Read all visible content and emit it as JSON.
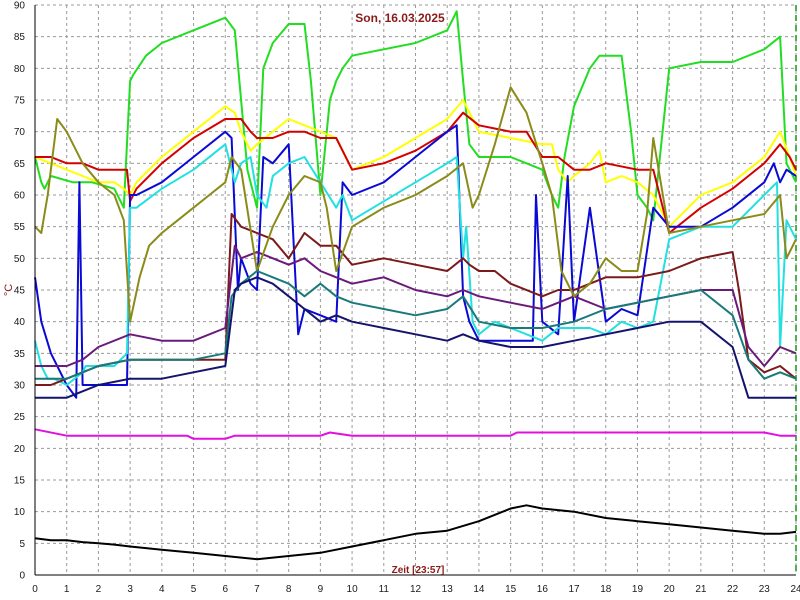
{
  "chart_data": {
    "type": "line",
    "title": "Son, 16.03.2025",
    "xlabel": "Zeit [23:57]",
    "ylabel": "°C",
    "xlim": [
      0,
      24
    ],
    "ylim": [
      0,
      90
    ],
    "x_ticks": [
      0,
      1,
      2,
      3,
      4,
      5,
      6,
      7,
      8,
      9,
      10,
      11,
      12,
      13,
      14,
      15,
      16,
      17,
      18,
      19,
      20,
      21,
      22,
      23,
      24
    ],
    "y_ticks": [
      0,
      5,
      10,
      15,
      20,
      25,
      30,
      35,
      40,
      45,
      50,
      55,
      60,
      65,
      70,
      75,
      80,
      85,
      90
    ],
    "grid": true,
    "grid_style": "dashed",
    "end_marker_x": 24,
    "series": [
      {
        "color": "#22dd22",
        "x": [
          0,
          0.2,
          0.3,
          0.5,
          1.2,
          1.8,
          2.5,
          2.8,
          3.0,
          3.1,
          3.5,
          4.0,
          5.0,
          6.0,
          6.3,
          6.5,
          6.7,
          7.0,
          7.2,
          7.5,
          8.0,
          8.5,
          8.7,
          9.0,
          9.3,
          9.5,
          9.7,
          10.0,
          11.0,
          12.0,
          13.0,
          13.3,
          13.5,
          13.7,
          14.0,
          15.0,
          15.5,
          16.0,
          16.3,
          16.5,
          16.7,
          17.0,
          17.5,
          17.8,
          18.0,
          18.5,
          18.8,
          19.0,
          19.3,
          19.5,
          20.0,
          21.0,
          22.0,
          23.0,
          23.5,
          23.7,
          24.0
        ],
        "values": [
          66,
          62,
          61,
          63,
          62,
          62,
          61,
          58,
          78,
          79,
          82,
          84,
          86,
          88,
          86,
          75,
          64,
          58,
          80,
          84,
          87,
          87,
          78,
          60,
          75,
          78,
          80,
          82,
          83,
          84,
          86,
          89,
          78,
          68,
          66,
          66,
          65,
          64,
          60,
          58,
          66,
          74,
          80,
          82,
          82,
          82,
          70,
          60,
          58,
          56,
          80,
          81,
          81,
          83,
          85,
          65,
          62
        ]
      },
      {
        "color": "#ffff00",
        "x": [
          0,
          0.5,
          1.0,
          1.5,
          2.0,
          2.5,
          2.8,
          3.0,
          3.2,
          4.0,
          5.0,
          6.0,
          6.3,
          6.5,
          6.8,
          7.0,
          7.5,
          8.0,
          8.5,
          9.0,
          9.5,
          10.0,
          11.0,
          12.0,
          13.0,
          13.5,
          13.8,
          14.0,
          15.0,
          16.0,
          16.3,
          16.5,
          16.8,
          17.0,
          17.5,
          17.8,
          18.0,
          18.5,
          19.0,
          19.5,
          20.0,
          21.0,
          22.0,
          22.5,
          23.0,
          23.5,
          23.8,
          24.0
        ],
        "values": [
          66,
          65,
          64,
          63,
          62,
          62,
          61,
          60,
          62,
          66,
          70,
          74,
          73,
          70,
          67,
          68,
          70,
          72,
          71,
          70,
          69,
          64,
          66,
          69,
          72,
          75,
          72,
          70,
          69,
          68,
          68,
          64,
          62,
          63,
          65,
          67,
          62,
          63,
          62,
          60,
          55,
          60,
          62,
          64,
          66,
          70,
          66,
          63
        ]
      },
      {
        "color": "#d40000",
        "x": [
          0,
          0.5,
          1.0,
          1.5,
          2.0,
          2.5,
          2.9,
          3.0,
          3.2,
          4.0,
          5.0,
          6.0,
          6.5,
          6.8,
          7.0,
          7.5,
          8.0,
          8.5,
          9.0,
          9.5,
          10.0,
          11.0,
          12.0,
          13.0,
          13.5,
          14.0,
          15.0,
          15.5,
          16.0,
          16.5,
          17.0,
          17.5,
          18.0,
          19.0,
          19.5,
          20.0,
          21.0,
          22.0,
          22.5,
          23.0,
          23.5,
          23.8,
          24.0
        ],
        "values": [
          66,
          66,
          65,
          65,
          64,
          64,
          64,
          59,
          61,
          65,
          69,
          72,
          72,
          70,
          69,
          69,
          70,
          70,
          69,
          69,
          64,
          65,
          67,
          70,
          73,
          71,
          70,
          70,
          66,
          66,
          64,
          64,
          65,
          64,
          64,
          54,
          58,
          61,
          63,
          65,
          68,
          66,
          64
        ]
      },
      {
        "color": "#0a0ad4",
        "x": [
          0,
          0.2,
          0.5,
          1.0,
          1.3,
          1.4,
          1.5,
          2.0,
          2.5,
          2.9,
          3.0,
          3.2,
          4.0,
          5.0,
          6.0,
          6.2,
          6.4,
          6.5,
          6.8,
          7.0,
          7.2,
          7.5,
          8.0,
          8.3,
          8.5,
          9.0,
          9.5,
          9.7,
          10.0,
          11.0,
          12.0,
          13.0,
          13.3,
          13.5,
          13.7,
          14.0,
          15.0,
          15.7,
          15.8,
          16.0,
          16.5,
          16.8,
          17.0,
          17.5,
          18.0,
          18.5,
          19.0,
          19.5,
          20.0,
          21.0,
          22.0,
          23.0,
          23.3,
          23.5,
          23.7,
          24.0
        ],
        "values": [
          47,
          40,
          35,
          30,
          28,
          62,
          30,
          30,
          30,
          30,
          60,
          60,
          62,
          66,
          70,
          69,
          45,
          50,
          46,
          45,
          66,
          65,
          68,
          38,
          42,
          41,
          40,
          62,
          60,
          62,
          66,
          70,
          71,
          44,
          40,
          37,
          37,
          37,
          60,
          40,
          38,
          63,
          40,
          58,
          40,
          42,
          41,
          58,
          55,
          55,
          58,
          62,
          65,
          62,
          64,
          63
        ]
      },
      {
        "color": "#22e0e0",
        "x": [
          0,
          0.2,
          0.4,
          0.6,
          1.0,
          1.5,
          1.6,
          2.0,
          2.5,
          2.9,
          3.0,
          3.2,
          4.0,
          5.0,
          6.0,
          6.3,
          6.5,
          6.8,
          7.0,
          7.3,
          7.5,
          8.0,
          8.5,
          9.0,
          9.5,
          9.7,
          10.0,
          11.0,
          12.0,
          13.0,
          13.3,
          13.5,
          13.6,
          13.8,
          14.0,
          14.5,
          15.0,
          15.5,
          16.0,
          16.5,
          17.0,
          17.5,
          18.0,
          18.5,
          19.0,
          19.5,
          20.0,
          21.0,
          22.0,
          23.0,
          23.4,
          23.5,
          23.7,
          24.0
        ],
        "values": [
          37,
          33,
          31,
          31,
          30,
          32,
          33,
          33,
          33,
          35,
          58,
          58,
          61,
          64,
          68,
          62,
          65,
          66,
          60,
          58,
          63,
          65,
          66,
          62,
          58,
          60,
          56,
          59,
          62,
          65,
          66,
          50,
          55,
          40,
          38,
          40,
          39,
          38,
          37,
          39,
          39,
          39,
          38,
          40,
          39,
          40,
          53,
          55,
          55,
          60,
          62,
          36,
          56,
          53
        ]
      },
      {
        "color": "#7a1a1a",
        "x": [
          0,
          0.5,
          1.0,
          1.5,
          2.0,
          3.0,
          4.0,
          5.0,
          6.0,
          6.2,
          6.5,
          7.0,
          7.5,
          8.0,
          8.5,
          9.0,
          9.5,
          10.0,
          11.0,
          12.0,
          13.0,
          13.5,
          13.7,
          14.0,
          14.5,
          15.0,
          16.0,
          16.5,
          17.0,
          17.5,
          18.0,
          19.0,
          20.0,
          21.0,
          22.0,
          22.2,
          22.5,
          23.0,
          23.5,
          24.0
        ],
        "values": [
          30,
          30,
          31,
          32,
          33,
          34,
          34,
          34,
          34,
          57,
          55,
          54,
          53,
          50,
          54,
          52,
          52,
          49,
          50,
          49,
          48,
          50,
          49,
          48,
          48,
          46,
          44,
          45,
          45,
          46,
          47,
          47,
          48,
          50,
          51,
          45,
          34,
          32,
          33,
          31
        ]
      },
      {
        "color": "#6a1a7a",
        "x": [
          0,
          0.5,
          1.0,
          1.5,
          2.0,
          3.0,
          4.0,
          5.0,
          6.0,
          6.3,
          6.5,
          7.0,
          7.5,
          8.0,
          8.5,
          9.0,
          9.5,
          10.0,
          11.0,
          12.0,
          13.0,
          13.5,
          14.0,
          15.0,
          16.0,
          16.5,
          17.0,
          18.0,
          19.0,
          20.0,
          21.0,
          22.0,
          22.5,
          23.0,
          23.5,
          24.0
        ],
        "values": [
          33,
          33,
          33,
          34,
          36,
          38,
          37,
          37,
          39,
          52,
          50,
          51,
          50,
          49,
          50,
          48,
          47,
          46,
          47,
          45,
          44,
          45,
          44,
          43,
          42,
          43,
          44,
          42,
          43,
          44,
          45,
          45,
          36,
          33,
          36,
          35
        ]
      },
      {
        "color": "#8b8b1a",
        "x": [
          0,
          0.2,
          0.4,
          0.7,
          1.0,
          1.5,
          2.0,
          2.5,
          2.8,
          3.0,
          3.3,
          3.6,
          4.0,
          4.5,
          5.0,
          5.5,
          6.0,
          6.2,
          6.5,
          7.0,
          7.5,
          8.0,
          8.5,
          9.0,
          9.2,
          9.5,
          10.0,
          11.0,
          12.0,
          13.0,
          13.5,
          13.8,
          14.0,
          14.5,
          15.0,
          15.5,
          16.0,
          16.3,
          16.6,
          17.0,
          17.5,
          18.0,
          18.5,
          19.0,
          19.3,
          19.5,
          20.0,
          21.0,
          22.0,
          23.0,
          23.5,
          23.7,
          24.0
        ],
        "values": [
          55,
          54,
          60,
          72,
          70,
          65,
          62,
          60,
          56,
          40,
          47,
          52,
          54,
          56,
          58,
          60,
          62,
          66,
          64,
          48,
          55,
          60,
          63,
          62,
          58,
          48,
          55,
          58,
          60,
          63,
          65,
          58,
          60,
          68,
          77,
          73,
          65,
          60,
          48,
          44,
          46,
          50,
          48,
          48,
          57,
          69,
          54,
          55,
          56,
          57,
          60,
          50,
          53
        ]
      },
      {
        "color": "#1a7a7a",
        "x": [
          0,
          0.5,
          1.0,
          1.5,
          2.0,
          3.0,
          4.0,
          5.0,
          6.0,
          6.2,
          6.5,
          7.0,
          7.5,
          8.0,
          8.5,
          9.0,
          9.5,
          10.0,
          11.0,
          12.0,
          13.0,
          13.5,
          14.0,
          15.0,
          16.0,
          17.0,
          18.0,
          19.0,
          20.0,
          21.0,
          22.0,
          22.5,
          23.0,
          23.5,
          24.0
        ],
        "values": [
          31,
          31,
          31,
          32,
          33,
          34,
          34,
          34,
          35,
          44,
          46,
          48,
          47,
          46,
          44,
          46,
          44,
          43,
          42,
          41,
          42,
          44,
          40,
          39,
          39,
          40,
          42,
          43,
          44,
          45,
          41,
          34,
          31,
          32,
          31
        ]
      },
      {
        "color": "#14146e",
        "x": [
          0,
          0.5,
          1.0,
          1.5,
          2.0,
          3.0,
          4.0,
          5.0,
          6.0,
          6.3,
          6.5,
          7.0,
          7.5,
          8.0,
          8.5,
          9.0,
          9.5,
          10.0,
          11.0,
          12.0,
          13.0,
          13.5,
          14.0,
          15.0,
          16.0,
          17.0,
          18.0,
          19.0,
          20.0,
          21.0,
          22.0,
          22.5,
          23.0,
          23.5,
          24.0
        ],
        "values": [
          28,
          28,
          28,
          29,
          30,
          31,
          31,
          32,
          33,
          45,
          46,
          47,
          46,
          44,
          42,
          40,
          41,
          40,
          39,
          38,
          37,
          38,
          37,
          36,
          36,
          37,
          38,
          39,
          40,
          40,
          36,
          28,
          28,
          28,
          28
        ]
      },
      {
        "color": "#e010e0",
        "x": [
          0,
          1,
          2,
          3,
          4,
          4.8,
          5.0,
          6.0,
          6.3,
          7.0,
          8.0,
          9.0,
          9.3,
          10.0,
          12.0,
          14.0,
          15.0,
          15.2,
          16.0,
          18.0,
          20.0,
          22.0,
          23.0,
          23.5,
          24.0
        ],
        "values": [
          23,
          22,
          22,
          22,
          22,
          22,
          21.5,
          21.5,
          22,
          22,
          22,
          22,
          22.5,
          22,
          22,
          22,
          22,
          22.5,
          22.5,
          22.5,
          22.5,
          22.5,
          22.5,
          22,
          22
        ]
      },
      {
        "color": "#000000",
        "x": [
          0,
          0.5,
          1,
          1.5,
          2,
          2.5,
          3,
          4,
          5,
          6,
          7,
          8,
          9,
          10,
          11,
          12,
          13,
          14,
          15,
          15.5,
          16,
          17,
          18,
          19,
          20,
          21,
          22,
          23,
          23.5,
          24
        ],
        "values": [
          5.8,
          5.5,
          5.5,
          5.2,
          5,
          4.8,
          4.5,
          4,
          3.5,
          3,
          2.5,
          3,
          3.5,
          4.5,
          5.5,
          6.5,
          7,
          8.5,
          10.5,
          11,
          10.5,
          10,
          9,
          8.5,
          8,
          7.5,
          7,
          6.5,
          6.5,
          6.8
        ]
      }
    ]
  }
}
